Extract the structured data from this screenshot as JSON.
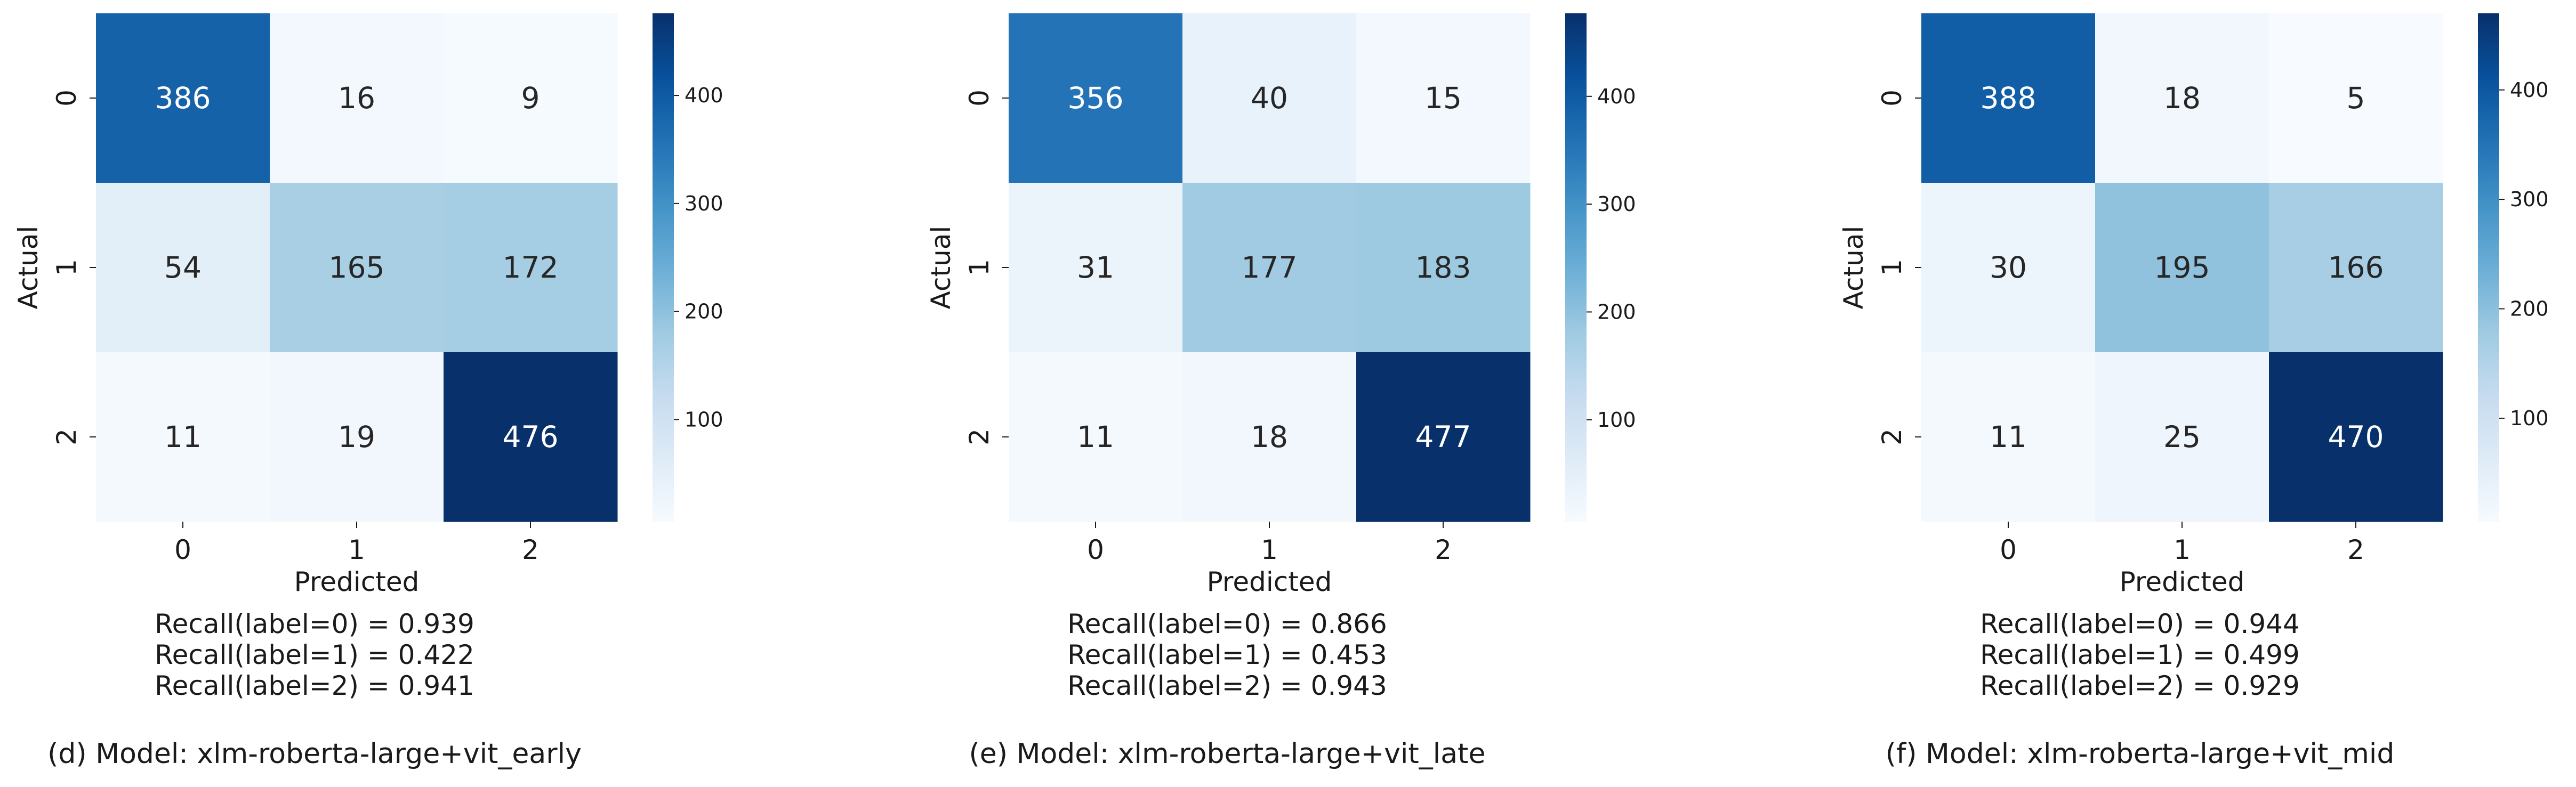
{
  "chart_data": [
    {
      "type": "heatmap",
      "row_labels": [
        "0",
        "1",
        "2"
      ],
      "col_labels": [
        "0",
        "1",
        "2"
      ],
      "values": [
        [
          386,
          16,
          9
        ],
        [
          54,
          165,
          172
        ],
        [
          11,
          19,
          476
        ]
      ],
      "xlabel": "Predicted",
      "ylabel": "Actual",
      "colorbar_ticks": [
        100,
        200,
        300,
        400
      ],
      "colorscale": "Blues",
      "vmin": 5,
      "vmax": 476,
      "recall": [
        "Recall(label=0) = 0.939",
        "Recall(label=1) = 0.422",
        "Recall(label=2) = 0.941"
      ],
      "caption": "(d) Model: xlm-roberta-large+vit_early"
    },
    {
      "type": "heatmap",
      "row_labels": [
        "0",
        "1",
        "2"
      ],
      "col_labels": [
        "0",
        "1",
        "2"
      ],
      "values": [
        [
          356,
          40,
          15
        ],
        [
          31,
          177,
          183
        ],
        [
          11,
          18,
          477
        ]
      ],
      "xlabel": "Predicted",
      "ylabel": "Actual",
      "colorbar_ticks": [
        100,
        200,
        300,
        400
      ],
      "colorscale": "Blues",
      "vmin": 5,
      "vmax": 477,
      "recall": [
        "Recall(label=0) = 0.866",
        "Recall(label=1) = 0.453",
        "Recall(label=2) = 0.943"
      ],
      "caption": "(e) Model: xlm-roberta-large+vit_late"
    },
    {
      "type": "heatmap",
      "row_labels": [
        "0",
        "1",
        "2"
      ],
      "col_labels": [
        "0",
        "1",
        "2"
      ],
      "values": [
        [
          388,
          18,
          5
        ],
        [
          30,
          195,
          166
        ],
        [
          11,
          25,
          470
        ]
      ],
      "xlabel": "Predicted",
      "ylabel": "Actual",
      "colorbar_ticks": [
        100,
        200,
        300,
        400
      ],
      "colorscale": "Blues",
      "vmin": 5,
      "vmax": 470,
      "recall": [
        "Recall(label=0) = 0.944",
        "Recall(label=1) = 0.499",
        "Recall(label=2) = 0.929"
      ],
      "caption": "(f) Model: xlm-roberta-large+vit_mid"
    }
  ]
}
